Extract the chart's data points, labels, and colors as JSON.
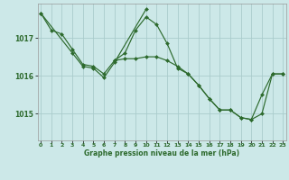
{
  "title": "Graphe pression niveau de la mer (hPa)",
  "bg_color": "#cce8e8",
  "grid_color": "#aacccc",
  "line_color": "#2d6a2d",
  "marker_color": "#2d6a2d",
  "x_ticks": [
    0,
    1,
    2,
    3,
    4,
    5,
    6,
    7,
    8,
    9,
    10,
    11,
    12,
    13,
    14,
    15,
    16,
    17,
    18,
    19,
    20,
    21,
    22,
    23
  ],
  "y_ticks": [
    1015,
    1016,
    1017
  ],
  "ylim": [
    1014.3,
    1017.9
  ],
  "xlim": [
    -0.3,
    23.3
  ],
  "series1": [
    1017.65,
    1017.2,
    1017.1,
    1016.7,
    1016.3,
    1016.25,
    1016.05,
    1016.4,
    1016.6,
    1017.2,
    1017.55,
    1017.35,
    1016.85,
    1016.2,
    1016.05,
    1015.75,
    1015.4,
    1015.1,
    1015.1,
    1014.9,
    1014.85,
    1015.5,
    1016.05,
    1016.05
  ],
  "series2_x": [
    0,
    3,
    4,
    5,
    6,
    7,
    10
  ],
  "series2_y": [
    1017.65,
    1016.6,
    1016.25,
    1016.2,
    1015.95,
    1016.35,
    1017.75
  ],
  "series3_x": [
    7,
    8,
    9,
    10,
    11,
    12,
    13,
    14,
    15,
    16,
    17,
    18,
    19,
    20,
    21,
    22,
    23
  ],
  "series3_y": [
    1016.4,
    1016.45,
    1016.45,
    1016.5,
    1016.5,
    1016.4,
    1016.25,
    1016.05,
    1015.75,
    1015.4,
    1015.1,
    1015.1,
    1014.9,
    1014.85,
    1015.0,
    1016.05,
    1016.05
  ]
}
